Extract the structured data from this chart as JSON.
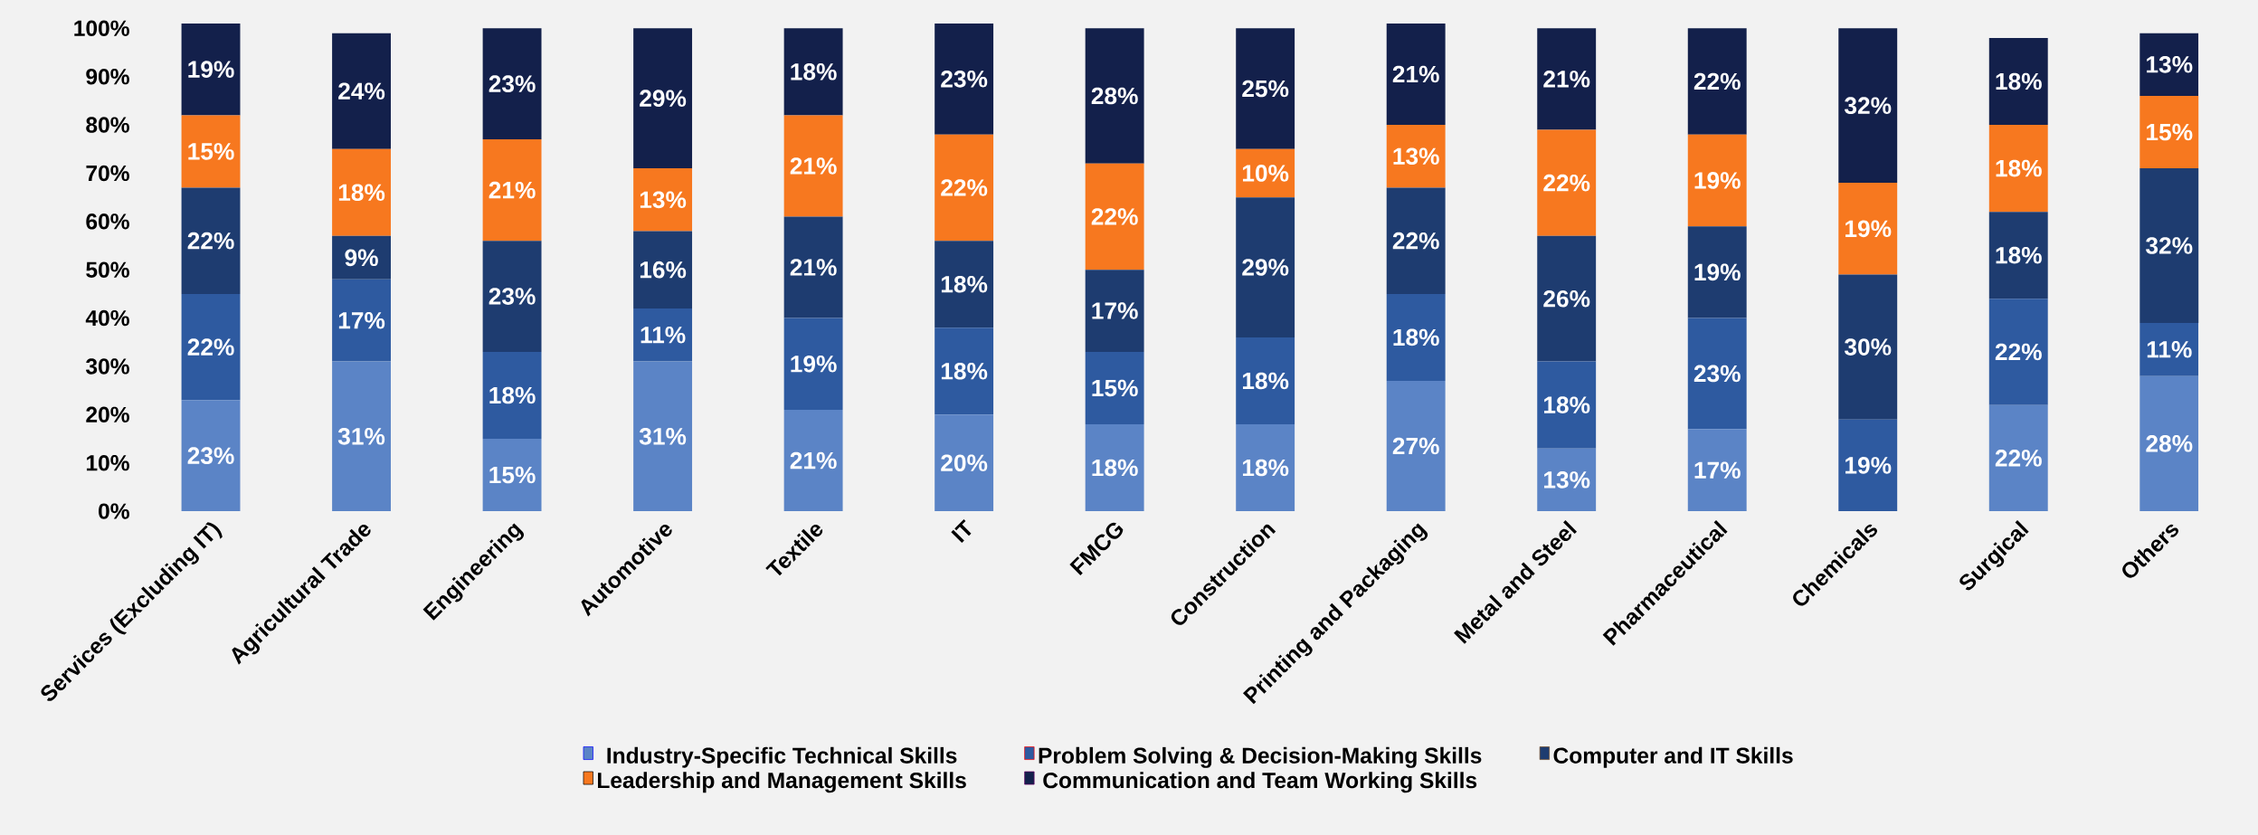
{
  "chart_data": {
    "type": "bar",
    "stacked": true,
    "legend": "bottom",
    "categories": [
      "Services (Excluding IT)",
      "Agricultural Trade",
      "Engineering",
      "Automotive",
      "Textile",
      "IT",
      "FMCG",
      "Construction",
      "Printing and Packaging",
      "Metal and Steel",
      "Pharmaceutical",
      "Chemicals",
      "Surgical",
      "Others"
    ],
    "ylim": [
      0,
      101
    ],
    "yticks": [
      {
        "value": 0,
        "label": "0%"
      },
      {
        "value": 10,
        "label": "10%"
      },
      {
        "value": 20,
        "label": "20%"
      },
      {
        "value": 30,
        "label": "30%"
      },
      {
        "value": 40,
        "label": "40%"
      },
      {
        "value": 50,
        "label": "50%"
      },
      {
        "value": 60,
        "label": "60%"
      },
      {
        "value": 70,
        "label": "70%"
      },
      {
        "value": 80,
        "label": "80%"
      },
      {
        "value": 90,
        "label": "90%"
      },
      {
        "value": 100,
        "label": "100%"
      }
    ],
    "series": [
      {
        "name": "Industry-Specific Technical Skills",
        "color": "#5b84c6",
        "values": [
          23,
          31,
          15,
          31,
          21,
          20,
          18,
          18,
          27,
          13,
          17,
          null,
          22,
          28
        ],
        "value_labels": [
          "23%",
          "31%",
          "15%",
          "31%",
          "21%",
          "20%",
          "18%",
          "18%",
          "27%",
          "13%",
          "17%",
          null,
          "22%",
          "28%"
        ]
      },
      {
        "name": "Problem Solving & Decision-Making Skills",
        "color": "#2e5aa0",
        "values": [
          22,
          17,
          18,
          11,
          19,
          18,
          15,
          18,
          18,
          18,
          23,
          19,
          22,
          11
        ],
        "value_labels": [
          "22%",
          "17%",
          "18%",
          "11%",
          "19%",
          "18%",
          "15%",
          "18%",
          "18%",
          "18%",
          "23%",
          "19%",
          "22%",
          "11%"
        ]
      },
      {
        "name": "Computer and IT Skills",
        "color": "#1e3c70",
        "values": [
          22,
          9,
          23,
          16,
          21,
          18,
          17,
          29,
          22,
          26,
          19,
          30,
          18,
          32
        ],
        "value_labels": [
          "22%",
          "9%",
          "23%",
          "16%",
          "21%",
          "18%",
          "17%",
          "29%",
          "22%",
          "26%",
          "19%",
          "30%",
          "18%",
          "32%"
        ]
      },
      {
        "name": "Leadership and Management Skills",
        "color": "#f7781f",
        "values": [
          15,
          18,
          21,
          13,
          21,
          22,
          22,
          10,
          13,
          22,
          19,
          19,
          18,
          15
        ],
        "value_labels": [
          "15%",
          "18%",
          "21%",
          "13%",
          "21%",
          "22%",
          "22%",
          "10%",
          "13%",
          "22%",
          "19%",
          "19%",
          "18%",
          "15%"
        ]
      },
      {
        "name": "Communication and Team Working Skills",
        "color": "#13204b",
        "values": [
          19,
          24,
          23,
          29,
          18,
          23,
          28,
          25,
          21,
          21,
          22,
          32,
          18,
          13
        ],
        "value_labels": [
          "19%",
          "24%",
          "23%",
          "29%",
          "18%",
          "23%",
          "28%",
          "25%",
          "21%",
          "21%",
          "22%",
          "32%",
          "18%",
          "13%"
        ]
      }
    ]
  }
}
